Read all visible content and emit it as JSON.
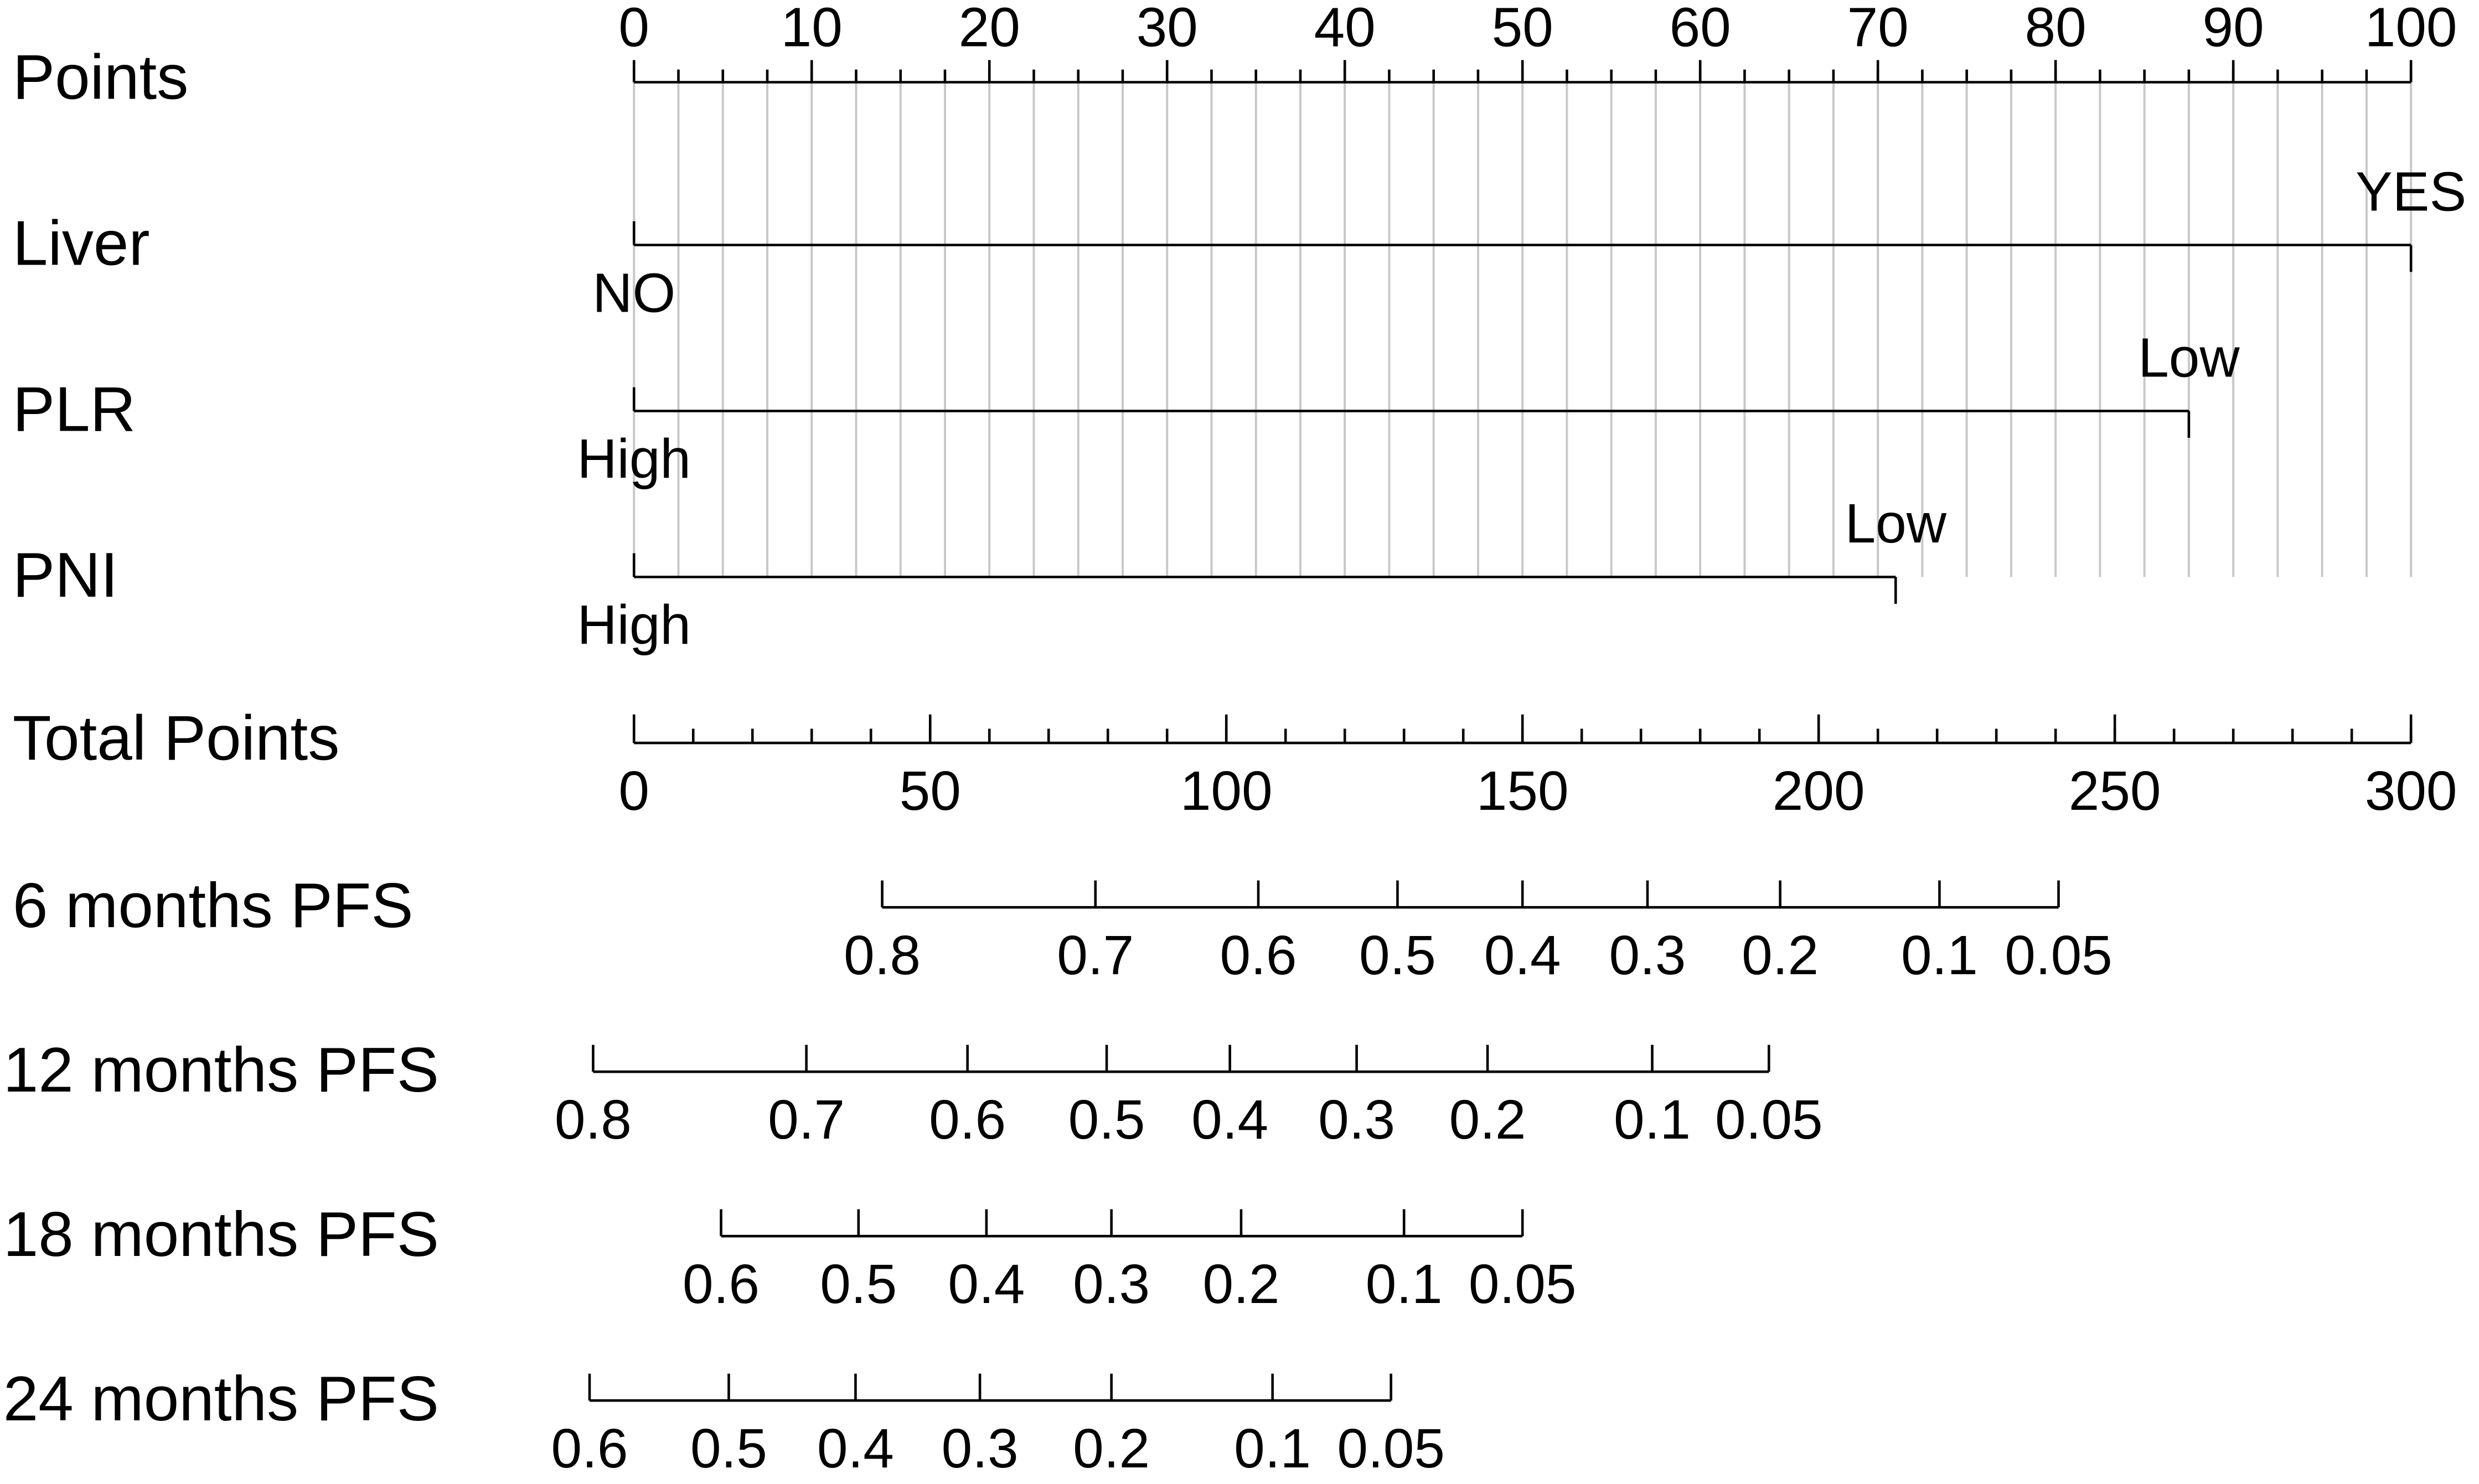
{
  "chart_data": {
    "type": "nomogram",
    "points_axis": {
      "name": "Points",
      "xlim": [
        0,
        100
      ],
      "xticks": [
        0,
        10,
        20,
        30,
        40,
        50,
        60,
        70,
        80,
        90,
        100
      ],
      "minor_ticks": [
        0,
        2.5,
        5,
        7.5,
        10,
        12.5,
        15,
        17.5,
        20,
        22.5,
        25,
        27.5,
        30,
        32.5,
        35,
        37.5,
        40,
        42.5,
        45,
        47.5,
        50,
        52.5,
        55,
        57.5,
        60,
        62.5,
        65,
        67.5,
        70,
        72.5,
        75,
        77.5,
        80,
        82.5,
        85,
        87.5,
        90,
        92.5,
        95,
        97.5,
        100
      ]
    },
    "grid": true,
    "variables": [
      {
        "name": "Liver",
        "levels": [
          {
            "value": 0,
            "label": "NO"
          },
          {
            "value": 100,
            "label": "YES"
          }
        ]
      },
      {
        "name": "PLR",
        "levels": [
          {
            "value": 0,
            "label": "High"
          },
          {
            "value": 87.5,
            "label": "Low"
          }
        ]
      },
      {
        "name": "PNI",
        "levels": [
          {
            "value": 0,
            "label": "High"
          },
          {
            "value": 71,
            "label": "Low"
          }
        ]
      }
    ],
    "total_axis": {
      "name": "Total Points",
      "xlim": [
        0,
        300
      ],
      "xticks": [
        0,
        50,
        100,
        150,
        200,
        250,
        300
      ],
      "minor_ticks": [
        0,
        10,
        20,
        30,
        40,
        50,
        60,
        70,
        80,
        90,
        100,
        110,
        120,
        130,
        140,
        150,
        160,
        170,
        180,
        190,
        200,
        210,
        220,
        230,
        240,
        250,
        260,
        270,
        280,
        290,
        300
      ]
    },
    "scales": [
      {
        "name": "6 months PFS",
        "ticks": [
          {
            "value": 41.9,
            "label": "0.8"
          },
          {
            "value": 77.9,
            "label": "0.7"
          },
          {
            "value": 105.4,
            "label": "0.6"
          },
          {
            "value": 128.9,
            "label": "0.5"
          },
          {
            "value": 150,
            "label": "0.4"
          },
          {
            "value": 171.1,
            "label": "0.3"
          },
          {
            "value": 193.5,
            "label": "0.2"
          },
          {
            "value": 220.4,
            "label": "0.1"
          },
          {
            "value": 240.5,
            "label": "0.05"
          }
        ]
      },
      {
        "name": "12 months PFS",
        "ticks": [
          {
            "value": -6.9,
            "label": "0.8"
          },
          {
            "value": 29.1,
            "label": "0.7"
          },
          {
            "value": 56.3,
            "label": "0.6"
          },
          {
            "value": 79.8,
            "label": "0.5"
          },
          {
            "value": 100.6,
            "label": "0.4"
          },
          {
            "value": 122,
            "label": "0.3"
          },
          {
            "value": 144.1,
            "label": "0.2"
          },
          {
            "value": 171.9,
            "label": "0.1"
          },
          {
            "value": 191.6,
            "label": "0.05"
          }
        ]
      },
      {
        "name": "18 months PFS",
        "ticks": [
          {
            "value": 14.7,
            "label": "0.6"
          },
          {
            "value": 37.9,
            "label": "0.5"
          },
          {
            "value": 59.5,
            "label": "0.4"
          },
          {
            "value": 80.6,
            "label": "0.3"
          },
          {
            "value": 102.5,
            "label": "0.2"
          },
          {
            "value": 130,
            "label": "0.1"
          },
          {
            "value": 150,
            "label": "0.05"
          }
        ]
      },
      {
        "name": "24 months PFS",
        "ticks": [
          {
            "value": -7.5,
            "label": "0.6"
          },
          {
            "value": 16,
            "label": "0.5"
          },
          {
            "value": 37.4,
            "label": "0.4"
          },
          {
            "value": 58.4,
            "label": "0.3"
          },
          {
            "value": 80.6,
            "label": "0.2"
          },
          {
            "value": 107.8,
            "label": "0.1"
          },
          {
            "value": 127.8,
            "label": "0.05"
          }
        ]
      }
    ]
  }
}
